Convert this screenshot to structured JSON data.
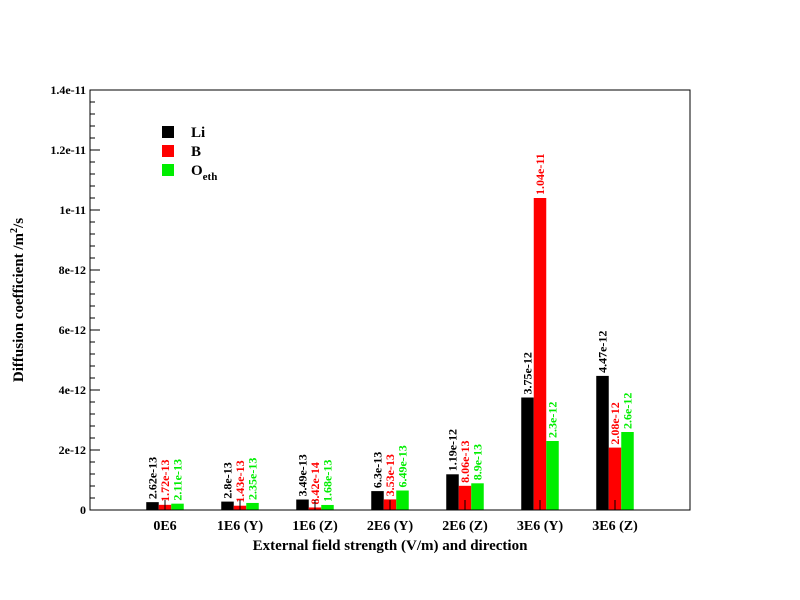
{
  "chart_data": {
    "type": "bar",
    "title": "",
    "xlabel": "External field strength (V/m) and direction",
    "ylabel": {
      "base": "Diffusion coefficient /m",
      "sup": "2",
      "tail": "/s"
    },
    "ylim": [
      0,
      1.4e-11
    ],
    "yticks": [
      0,
      2e-12,
      4e-12,
      6e-12,
      8e-12,
      1e-11,
      1.2e-11,
      1.4e-11
    ],
    "ytick_labels": [
      "0",
      "2e-12",
      "4e-12",
      "6e-12",
      "8e-12",
      "1e-11",
      "1.2e-11",
      "1.4e-11"
    ],
    "y_minor_per_major": 4,
    "grid": false,
    "legend_position": "top-left",
    "categories": [
      "0E6",
      "1E6 (Y)",
      "1E6 (Z)",
      "2E6 (Y)",
      "2E6 (Z)",
      "3E6 (Y)",
      "3E6 (Z)"
    ],
    "series": [
      {
        "name": "Li",
        "legend_main": "Li",
        "legend_sub": "",
        "color": "#000000",
        "values": [
          2.62e-13,
          2.8e-13,
          3.49e-13,
          6.3e-13,
          1.19e-12,
          3.75e-12,
          4.47e-12
        ],
        "labels": [
          "2.62e-13",
          "2.8e-13",
          "3.49e-13",
          "6.3e-13",
          "1.19e-12",
          "3.75e-12",
          "4.47e-12"
        ]
      },
      {
        "name": "B",
        "legend_main": "B",
        "legend_sub": "",
        "color": "#ff0000",
        "values": [
          1.72e-13,
          1.43e-13,
          8.42e-14,
          3.53e-13,
          8.06e-13,
          1.04e-11,
          2.08e-12
        ],
        "labels": [
          "1.72e-13",
          "1.43e-13",
          "8.42e-14",
          "3.53e-13",
          "8.06e-13",
          "1.04e-11",
          "2.08e-12"
        ]
      },
      {
        "name": "Oeth",
        "legend_main": "O",
        "legend_sub": "eth",
        "color": "#00ee00",
        "values": [
          2.11e-13,
          2.35e-13,
          1.68e-13,
          6.49e-13,
          8.9e-13,
          2.3e-12,
          2.6e-12
        ],
        "labels": [
          "2.11e-13",
          "2.35e-13",
          "1.68e-13",
          "6.49e-13",
          "8.9e-13",
          "2.3e-12",
          "2.6e-12"
        ]
      }
    ]
  }
}
